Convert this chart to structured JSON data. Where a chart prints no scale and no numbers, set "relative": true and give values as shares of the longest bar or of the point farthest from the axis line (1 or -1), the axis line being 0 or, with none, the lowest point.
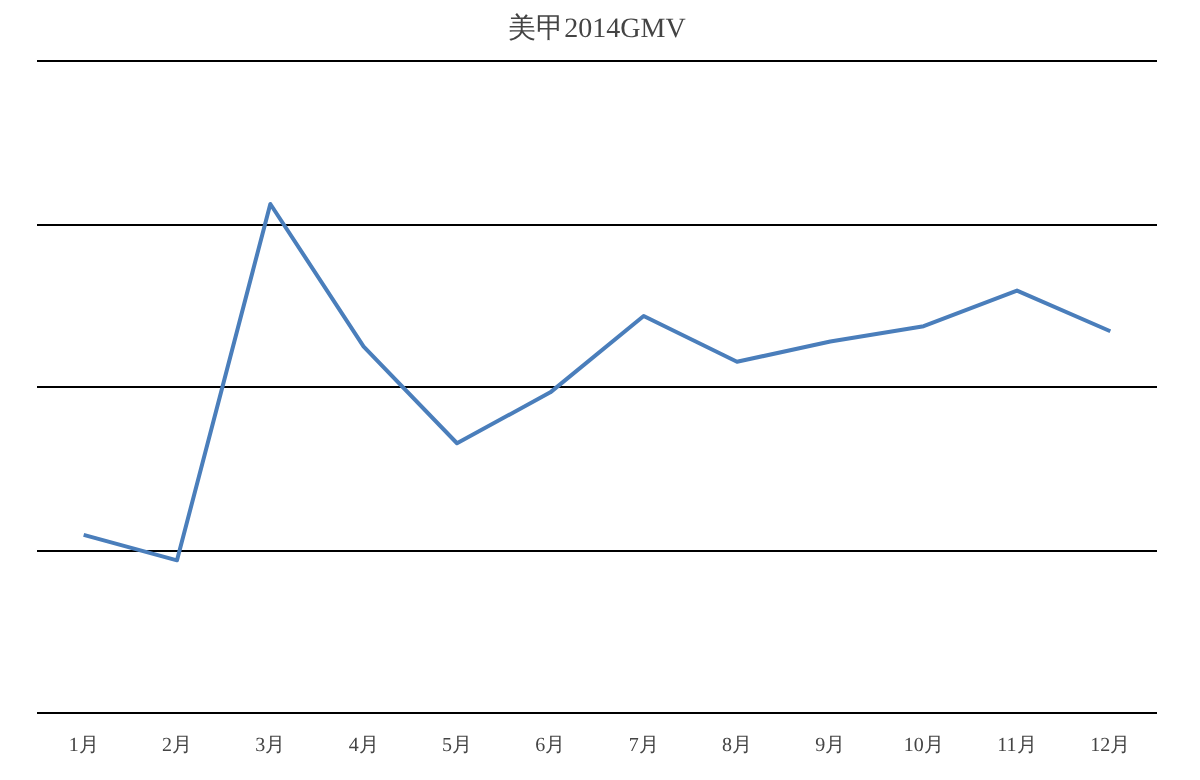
{
  "chart_data": {
    "type": "line",
    "title": "美甲2014GMV",
    "relative": true,
    "grid": "y",
    "marker": "none",
    "line_style": "solid",
    "categories": [
      "1月",
      "2月",
      "3月",
      "4月",
      "5月",
      "6月",
      "7月",
      "8月",
      "9月",
      "10月",
      "11月",
      "12月"
    ],
    "series": [
      {
        "color": "#4a7ebb",
        "values": [
          0.35,
          0.3,
          1,
          0.72,
          0.53,
          0.63,
          0.78,
          0.69,
          0.73,
          0.76,
          0.83,
          0.75
        ]
      }
    ]
  }
}
